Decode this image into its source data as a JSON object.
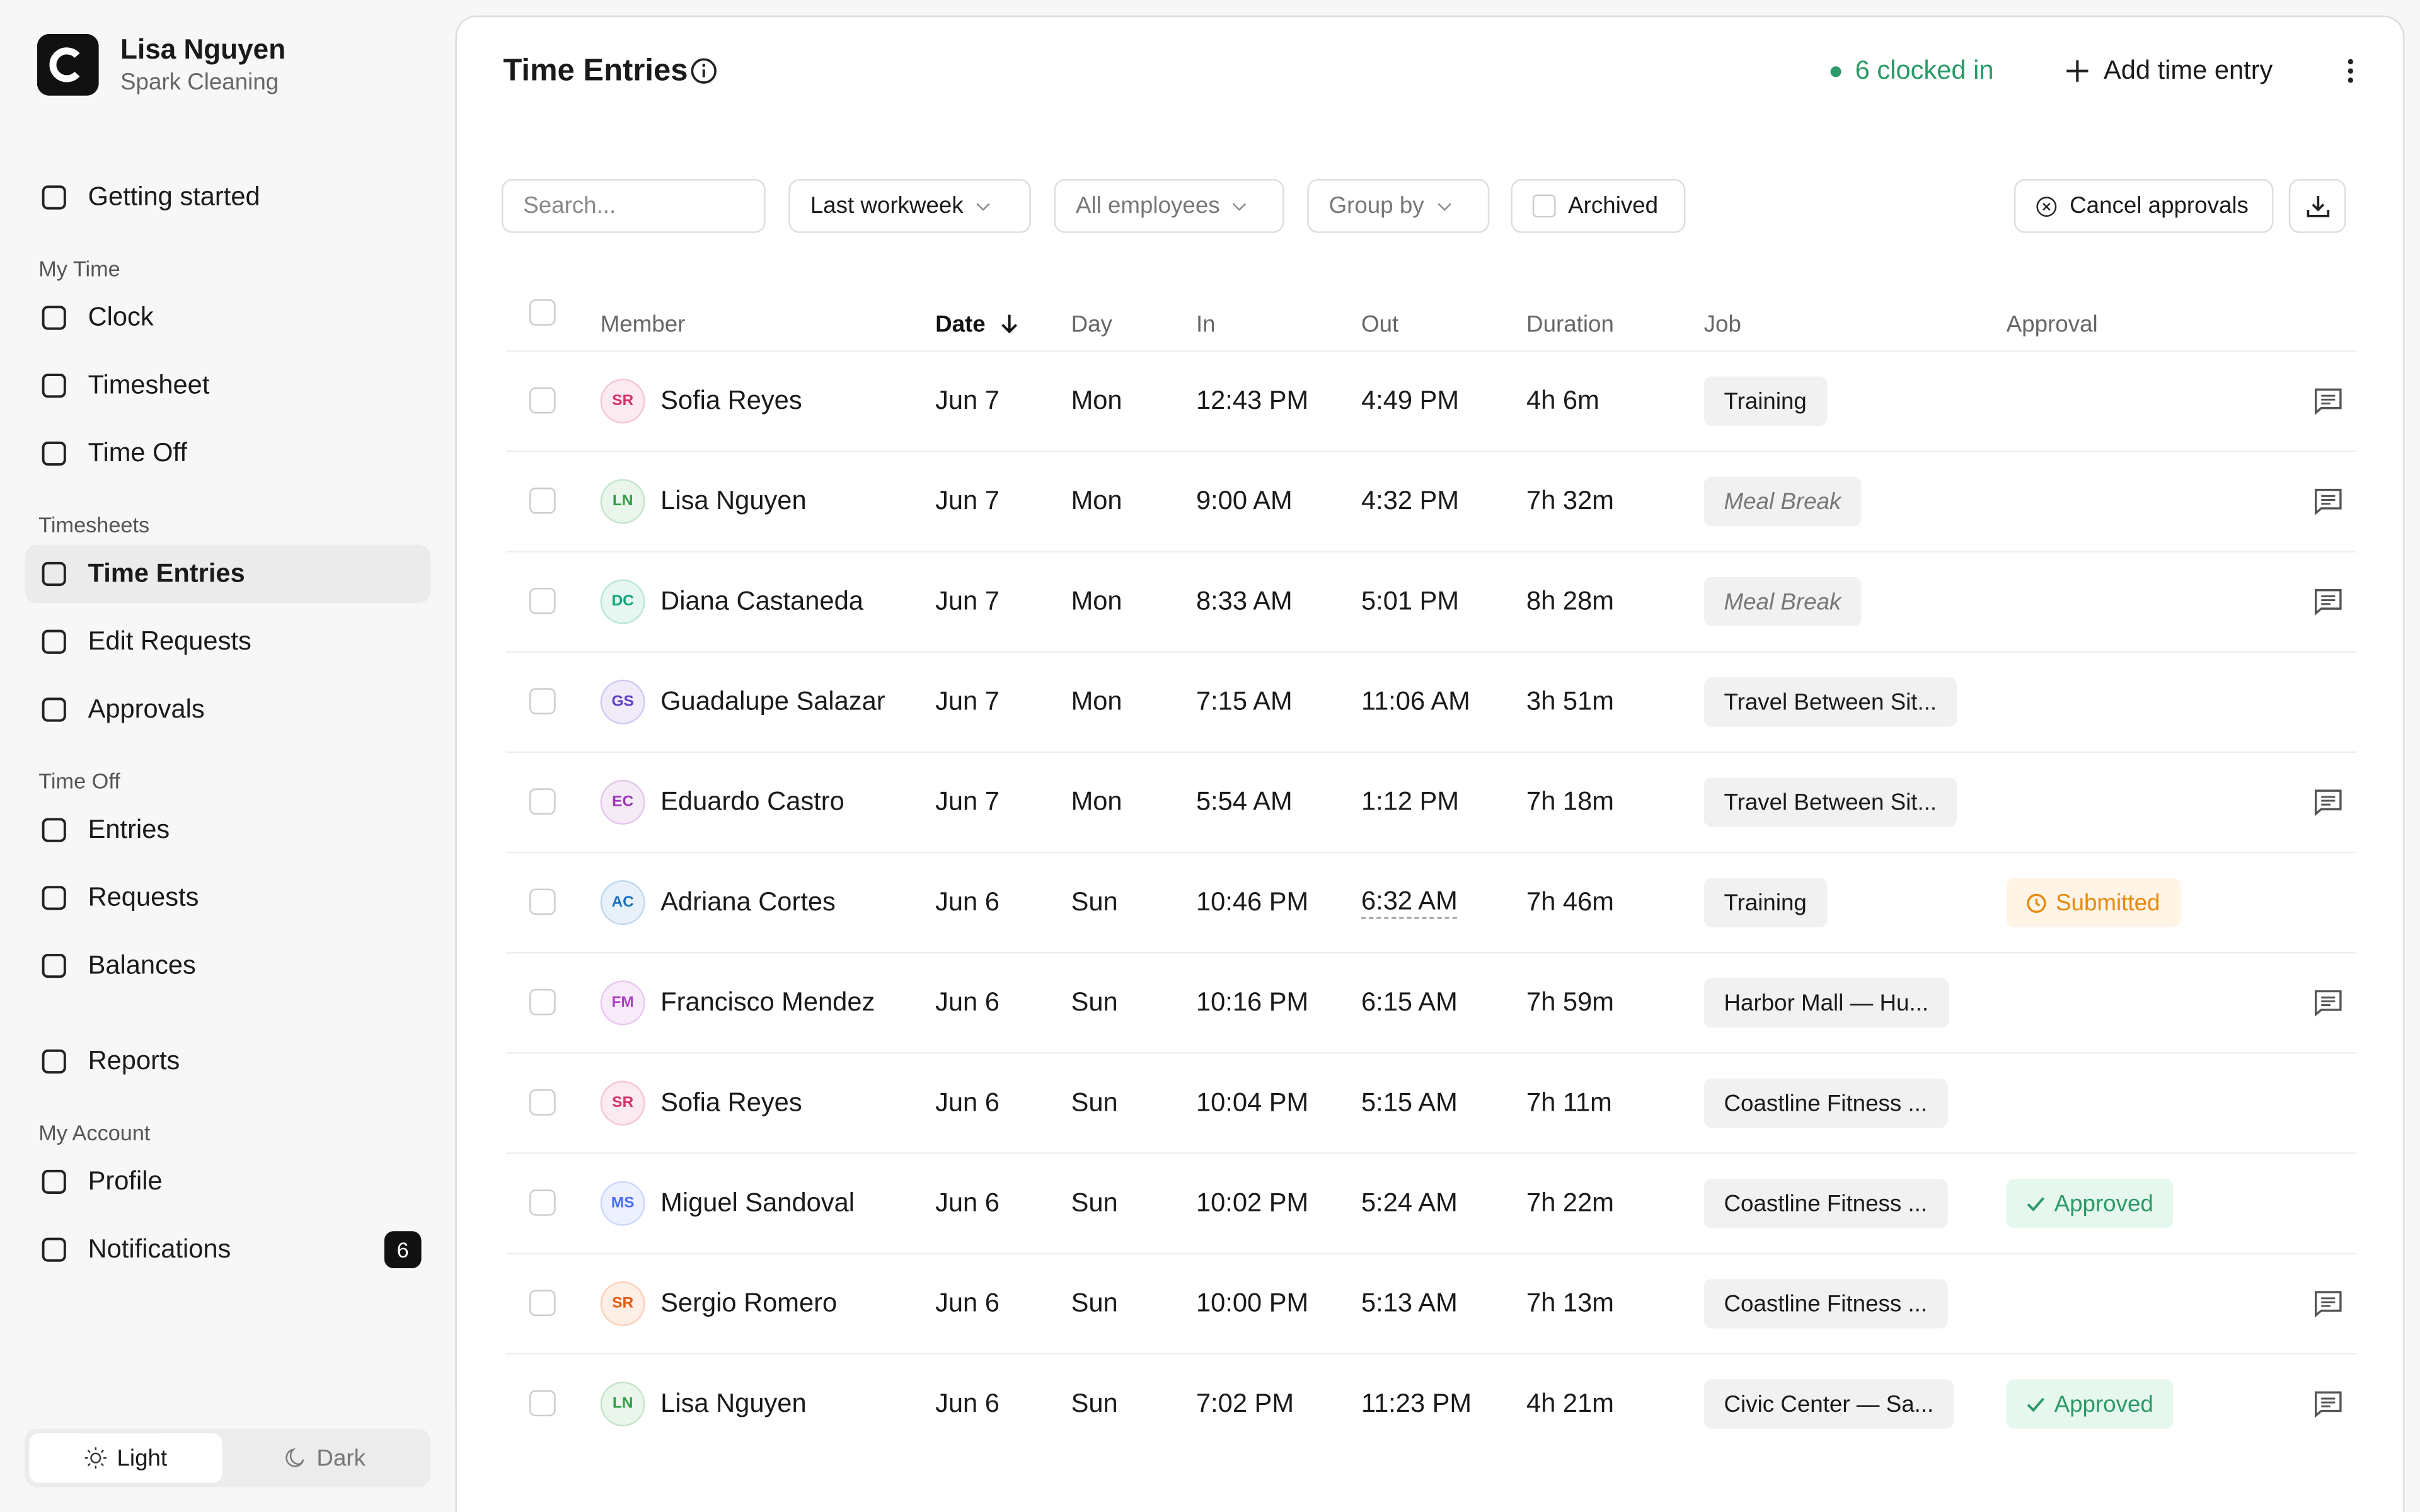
{
  "user": {
    "name": "Lisa Nguyen",
    "company": "Spark Cleaning"
  },
  "nav": [
    {
      "items": [
        {
          "label": "Getting started"
        }
      ]
    },
    {
      "heading": "My Time",
      "items": [
        {
          "label": "Clock"
        },
        {
          "label": "Timesheet"
        },
        {
          "label": "Time Off"
        }
      ]
    },
    {
      "heading": "Timesheets",
      "items": [
        {
          "label": "Time Entries",
          "active": true
        },
        {
          "label": "Edit Requests"
        },
        {
          "label": "Approvals"
        }
      ]
    },
    {
      "heading": "Time Off",
      "items": [
        {
          "label": "Entries"
        },
        {
          "label": "Requests"
        },
        {
          "label": "Balances"
        }
      ]
    },
    {
      "items": [
        {
          "label": "Reports"
        }
      ]
    },
    {
      "heading": "My Account",
      "items": [
        {
          "label": "Profile"
        },
        {
          "label": "Notifications",
          "badge": "6"
        }
      ]
    }
  ],
  "theme": {
    "light": "Light",
    "dark": "Dark"
  },
  "header": {
    "title": "Time Entries",
    "clocked_in": "6 clocked in",
    "add": "Add time entry"
  },
  "toolbar": {
    "search": "Search...",
    "period": "Last workweek",
    "employees": "All employees",
    "group_by": "Group by",
    "archived": "Archived",
    "cancel": "Cancel approvals"
  },
  "table": {
    "columns": [
      "Member",
      "Date",
      "Day",
      "In",
      "Out",
      "Duration",
      "Job",
      "Approval"
    ],
    "rows": [
      {
        "initials": "SR",
        "color": "#d6336c",
        "name": "Sofia Reyes",
        "date": "Jun 7",
        "day": "Mon",
        "in": "12:43 PM",
        "out": "4:49 PM",
        "duration": "4h 6m",
        "job": "Training",
        "approval": null,
        "comment": true
      },
      {
        "initials": "LN",
        "color": "#2f9e44",
        "name": "Lisa Nguyen",
        "date": "Jun 7",
        "day": "Mon",
        "in": "9:00 AM",
        "out": "4:32 PM",
        "duration": "7h 32m",
        "job": "Meal Break",
        "job_italic": true,
        "approval": null,
        "comment": true
      },
      {
        "initials": "DC",
        "color": "#0ca678",
        "name": "Diana Castaneda",
        "date": "Jun 7",
        "day": "Mon",
        "in": "8:33 AM",
        "out": "5:01 PM",
        "duration": "8h 28m",
        "job": "Meal Break",
        "job_italic": true,
        "approval": null,
        "comment": true
      },
      {
        "initials": "GS",
        "color": "#5f3dc4",
        "name": "Guadalupe Salazar",
        "date": "Jun 7",
        "day": "Mon",
        "in": "7:15 AM",
        "out": "11:06 AM",
        "duration": "3h 51m",
        "job": "Travel Between Sit...",
        "approval": null,
        "comment": false
      },
      {
        "initials": "EC",
        "color": "#9c36b5",
        "name": "Eduardo Castro",
        "date": "Jun 7",
        "day": "Mon",
        "in": "5:54 AM",
        "out": "1:12 PM",
        "duration": "7h 18m",
        "job": "Travel Between Sit...",
        "approval": null,
        "comment": true
      },
      {
        "initials": "AC",
        "color": "#1971c2",
        "name": "Adriana Cortes",
        "date": "Jun 6",
        "day": "Sun",
        "in": "10:46 PM",
        "out": "6:32 AM",
        "duration": "7h 46m",
        "job": "Training",
        "approval": {
          "label": "Submitted",
          "color": "#e8890c",
          "bg": "#fff4e6"
        },
        "comment": false
      },
      {
        "initials": "FM",
        "color": "#ae3ec9",
        "name": "Francisco Mendez",
        "date": "Jun 6",
        "day": "Sun",
        "in": "10:16 PM",
        "out": "6:15 AM",
        "duration": "7h 59m",
        "job": "Harbor Mall — Hu...",
        "approval": null,
        "comment": true
      },
      {
        "initials": "SR",
        "color": "#d6336c",
        "name": "Sofia Reyes",
        "date": "Jun 6",
        "day": "Sun",
        "in": "10:04 PM",
        "out": "5:15 AM",
        "duration": "7h 11m",
        "job": "Coastline Fitness ...",
        "approval": null,
        "comment": false
      },
      {
        "initials": "MS",
        "color": "#4c6ef5",
        "name": "Miguel Sandoval",
        "date": "Jun 6",
        "day": "Sun",
        "in": "10:02 PM",
        "out": "5:24 AM",
        "duration": "7h 22m",
        "job": "Coastline Fitness ...",
        "approval": {
          "label": "Approved",
          "color": "#2b9a66",
          "bg": "#e6f7ee"
        },
        "comment": false
      },
      {
        "initials": "SR",
        "color": "#e8590c",
        "name": "Sergio Romero",
        "date": "Jun 6",
        "day": "Sun",
        "in": "10:00 PM",
        "out": "5:13 AM",
        "duration": "7h 13m",
        "job": "Coastline Fitness ...",
        "approval": null,
        "comment": true
      },
      {
        "initials": "LN",
        "color": "#2f9e44",
        "name": "Lisa Nguyen",
        "date": "Jun 6",
        "day": "Sun",
        "in": "7:02 PM",
        "out": "11:23 PM",
        "duration": "4h 21m",
        "job": "Civic Center — Sa...",
        "approval": {
          "label": "Approved",
          "color": "#2b9a66",
          "bg": "#e6f7ee"
        },
        "comment": true
      }
    ]
  }
}
